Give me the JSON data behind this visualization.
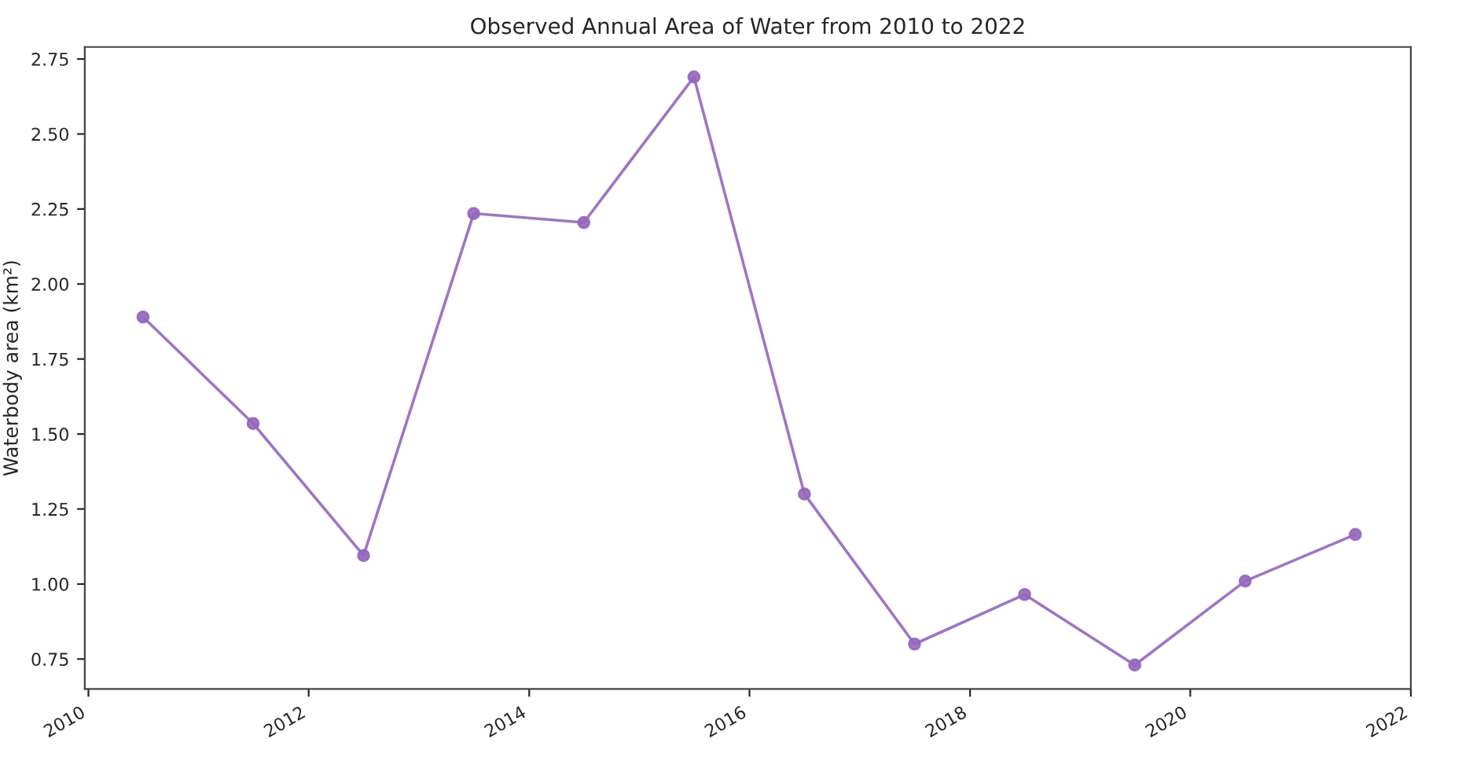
{
  "chart_data": {
    "type": "line",
    "title": "Observed Annual Area of Water from 2010 to 2022",
    "ylabel": "Waterbody area (km²)",
    "x": [
      "2010-07-01",
      "2011-07-01",
      "2012-07-01",
      "2013-07-01",
      "2014-07-01",
      "2015-07-01",
      "2016-07-01",
      "2017-07-01",
      "2018-07-01",
      "2019-07-01",
      "2020-07-01",
      "2021-07-01"
    ],
    "series": [
      {
        "color": "#9467bd",
        "values": [
          1.89,
          1.535,
          1.095,
          2.235,
          2.205,
          2.69,
          1.3,
          0.8,
          0.965,
          0.73,
          1.01,
          1.165
        ]
      }
    ],
    "xlim": [
      "2009-12-20",
      "2022-01-01"
    ],
    "xticks": [
      {
        "value": "2010-01-01",
        "label": "2010"
      },
      {
        "value": "2012-01-01",
        "label": "2012"
      },
      {
        "value": "2014-01-01",
        "label": "2014"
      },
      {
        "value": "2016-01-01",
        "label": "2016"
      },
      {
        "value": "2018-01-01",
        "label": "2018"
      },
      {
        "value": "2020-01-01",
        "label": "2020"
      },
      {
        "value": "2022-01-01",
        "label": "2022"
      }
    ],
    "ylim": [
      0.65,
      2.79
    ],
    "yticks": [
      0.75,
      {
        "value": 1.0,
        "label": "1.00"
      },
      1.25,
      {
        "value": 1.5,
        "label": "1.50"
      },
      1.75,
      {
        "value": 2.0,
        "label": "2.00"
      },
      2.25,
      {
        "value": 2.5,
        "label": "2.50"
      },
      2.75
    ],
    "marker": "circle",
    "line_style": "solid",
    "grid": false,
    "legend": false
  }
}
